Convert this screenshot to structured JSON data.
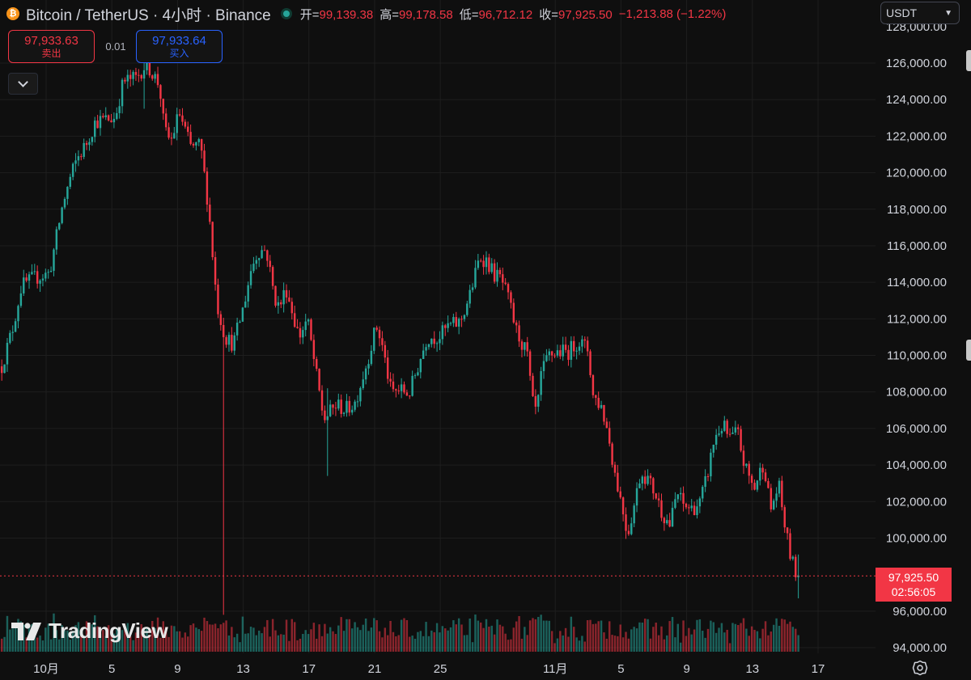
{
  "header": {
    "symbol_title": "Bitcoin / TetherUS · 4小时 · Binance",
    "coin_icon": "bitcoin-icon",
    "open_label": "开=",
    "open_value": "99,139.38",
    "high_label": "高=",
    "high_value": "99,178.58",
    "low_label": "低=",
    "low_value": "96,712.12",
    "close_label": "收=",
    "close_value": "97,925.50",
    "change": "−1,213.88 (−1.22%)"
  },
  "currency_select": {
    "value": "USDT"
  },
  "trade": {
    "sell_price": "97,933.63",
    "sell_label": "卖出",
    "spread": "0.01",
    "buy_price": "97,933.64",
    "buy_label": "买入"
  },
  "last_price": {
    "price": "97,925.50",
    "countdown": "02:56:05"
  },
  "logo": {
    "text": "TradingView"
  },
  "colors": {
    "up": "#26a69a",
    "down": "#f23645",
    "background": "#0f0f0f",
    "grid": "#1e1e1e"
  },
  "chart_data": {
    "type": "candlestick",
    "ylim": [
      93000,
      128000
    ],
    "grid": true,
    "y_ticks": [
      "94,000.00",
      "96,000.00",
      "100,000.00",
      "102,000.00",
      "104,000.00",
      "106,000.00",
      "108,000.00",
      "110,000.00",
      "112,000.00",
      "114,000.00",
      "116,000.00",
      "118,000.00",
      "120,000.00",
      "122,000.00",
      "124,000.00",
      "126,000.00"
    ],
    "y_tick_values": [
      94000,
      96000,
      100000,
      102000,
      104000,
      106000,
      108000,
      110000,
      112000,
      114000,
      116000,
      118000,
      120000,
      122000,
      124000,
      126000
    ],
    "x_ticks": [
      "10月",
      "5",
      "9",
      "13",
      "17",
      "21",
      "25",
      "11月",
      "5",
      "9",
      "13",
      "17"
    ],
    "x_tick_days": [
      0,
      4,
      8,
      12,
      16,
      20,
      24,
      31,
      35,
      39,
      43,
      47
    ],
    "x_days_start": -2.8,
    "x_days_end": 54.3,
    "last_price_value": 97925.5,
    "anchors": [
      [
        -2.7,
        109400
      ],
      [
        -2.0,
        111600
      ],
      [
        -1.5,
        113800
      ],
      [
        -0.8,
        114200
      ],
      [
        0.2,
        114500
      ],
      [
        1.0,
        118200
      ],
      [
        1.5,
        119800
      ],
      [
        1.9,
        120800
      ],
      [
        2.4,
        121500
      ],
      [
        3.0,
        122800
      ],
      [
        4.2,
        123000
      ],
      [
        4.7,
        125000
      ],
      [
        5.5,
        125200
      ],
      [
        6.1,
        126000
      ],
      [
        6.9,
        124800
      ],
      [
        7.2,
        122300
      ],
      [
        7.6,
        121700
      ],
      [
        8.1,
        123300
      ],
      [
        8.8,
        121400
      ],
      [
        9.4,
        121500
      ],
      [
        9.9,
        118000
      ],
      [
        10.4,
        112800
      ],
      [
        10.9,
        111000
      ],
      [
        11.4,
        110600
      ],
      [
        12.0,
        112600
      ],
      [
        12.5,
        114800
      ],
      [
        12.9,
        115700
      ],
      [
        13.4,
        115800
      ],
      [
        13.9,
        113200
      ],
      [
        14.2,
        112600
      ],
      [
        14.6,
        113700
      ],
      [
        15.1,
        112000
      ],
      [
        15.4,
        111000
      ],
      [
        15.9,
        112000
      ],
      [
        16.4,
        109200
      ],
      [
        16.9,
        106500
      ],
      [
        17.2,
        106800
      ],
      [
        17.7,
        107300
      ],
      [
        18.2,
        107000
      ],
      [
        18.8,
        107400
      ],
      [
        19.5,
        109500
      ],
      [
        20.1,
        111600
      ],
      [
        20.4,
        110800
      ],
      [
        21.0,
        108000
      ],
      [
        21.6,
        108100
      ],
      [
        22.1,
        107900
      ],
      [
        22.6,
        109300
      ],
      [
        23.2,
        111000
      ],
      [
        23.9,
        111000
      ],
      [
        24.5,
        111600
      ],
      [
        25.2,
        111800
      ],
      [
        25.8,
        113300
      ],
      [
        26.4,
        115400
      ],
      [
        26.8,
        115200
      ],
      [
        27.3,
        114400
      ],
      [
        27.7,
        114200
      ],
      [
        28.2,
        112900
      ],
      [
        28.6,
        111400
      ],
      [
        29.3,
        110000
      ],
      [
        29.6,
        107400
      ],
      [
        29.9,
        106800
      ],
      [
        30.1,
        108800
      ],
      [
        30.6,
        110000
      ],
      [
        31.2,
        110200
      ],
      [
        31.8,
        110200
      ],
      [
        32.4,
        110800
      ],
      [
        33.0,
        110300
      ],
      [
        33.3,
        107800
      ],
      [
        33.8,
        107200
      ],
      [
        34.2,
        105800
      ],
      [
        34.6,
        103700
      ],
      [
        35.1,
        101600
      ],
      [
        35.4,
        100200
      ],
      [
        35.8,
        101800
      ],
      [
        36.2,
        103600
      ],
      [
        36.6,
        103300
      ],
      [
        37.1,
        102400
      ],
      [
        37.5,
        101400
      ],
      [
        38.0,
        100700
      ],
      [
        38.4,
        102500
      ],
      [
        38.8,
        101800
      ],
      [
        39.3,
        101600
      ],
      [
        39.8,
        101900
      ],
      [
        40.2,
        103200
      ],
      [
        40.7,
        105500
      ],
      [
        41.2,
        106200
      ],
      [
        41.6,
        105400
      ],
      [
        42.1,
        105800
      ],
      [
        42.5,
        104000
      ],
      [
        43.1,
        102700
      ],
      [
        43.7,
        104200
      ],
      [
        44.1,
        101500
      ],
      [
        44.6,
        102900
      ],
      [
        44.9,
        101100
      ],
      [
        45.2,
        99500
      ],
      [
        45.6,
        98100
      ],
      [
        45.9,
        98000
      ]
    ],
    "wick_extremes": [
      {
        "day": 10.85,
        "low": 95800,
        "high": 111500
      },
      {
        "day": 17.15,
        "low": 103400,
        "high": 108200
      },
      {
        "day": 6.05,
        "low": 123500,
        "high": 126300
      },
      {
        "day": 45.85,
        "low": 96700,
        "high": 99100
      }
    ]
  }
}
